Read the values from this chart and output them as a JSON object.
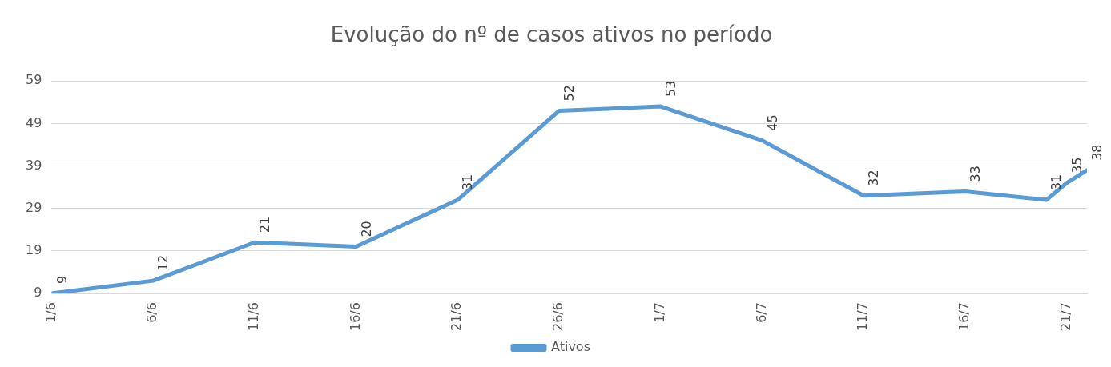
{
  "chart_data": {
    "type": "line",
    "title": "Evolução do nº de casos ativos no período",
    "x": [
      "--06-01",
      "--06-06",
      "--06-11",
      "--06-16",
      "--06-21",
      "--06-26",
      "--07-01",
      "--07-06",
      "--07-11",
      "--07-16",
      "--07-20",
      "--07-21",
      "--07-22"
    ],
    "series": [
      {
        "name": "Ativos",
        "color": "#5b9bd5",
        "values": [
          9,
          12,
          21,
          20,
          31,
          52,
          53,
          45,
          32,
          33,
          31,
          35,
          38
        ]
      }
    ],
    "xlim": [
      "--06-01",
      "--07-22"
    ],
    "xticks": [
      {
        "value": "--06-01",
        "label": "1/6"
      },
      {
        "value": "--06-06",
        "label": "6/6"
      },
      {
        "value": "--06-11",
        "label": "11/6"
      },
      {
        "value": "--06-16",
        "label": "16/6"
      },
      {
        "value": "--06-21",
        "label": "21/6"
      },
      {
        "value": "--06-26",
        "label": "26/6"
      },
      {
        "value": "--07-01",
        "label": "1/7"
      },
      {
        "value": "--07-06",
        "label": "6/7"
      },
      {
        "value": "--07-11",
        "label": "11/7"
      },
      {
        "value": "--07-16",
        "label": "16/7"
      },
      {
        "value": "--07-21",
        "label": "21/7"
      }
    ],
    "ylim": [
      9,
      59
    ],
    "yticks": [
      9,
      19,
      29,
      39,
      49,
      59
    ],
    "grid": "y",
    "legend": "bottom",
    "marker": "none",
    "line_style": "solid",
    "data_labels": true
  }
}
